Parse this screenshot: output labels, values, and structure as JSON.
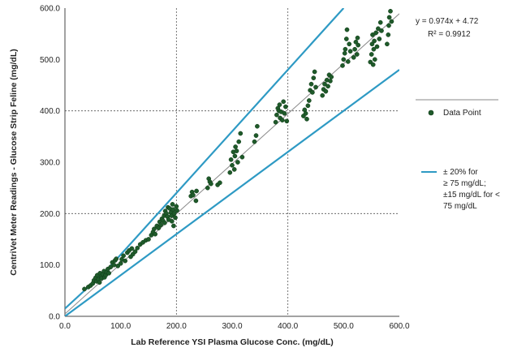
{
  "chart_data": {
    "type": "scatter",
    "title": "",
    "xlabel": "Lab Reference YSI Plasma Glucose Conc. (mg/dL)",
    "ylabel": "CentriVet Meter Readings - Glucose Strip Feline (mg/dL)",
    "xlim": [
      0,
      600
    ],
    "ylim": [
      0,
      600
    ],
    "x_ticks": [
      "0.0",
      "100.0",
      "200.0",
      "300.0",
      "400.0",
      "500.0",
      "600.0"
    ],
    "y_ticks": [
      "0.0",
      "100.0",
      "200.0",
      "300.0",
      "400.0",
      "500.0",
      "600.0"
    ],
    "grid": "dotted major gridlines at 200 and 400 on both axes",
    "legend_position": "right",
    "annotation": {
      "equation": "y = 0.974x + 4.72",
      "r_squared": "R² = 0.9912"
    },
    "colors": {
      "points": "#1f5a2a",
      "bounds": "#2e9ac4",
      "trend": "#8a8a8a",
      "grid": "#555555"
    },
    "trendline": {
      "slope": 0.974,
      "intercept": 4.72
    },
    "bounds": {
      "high_percent": 20,
      "low_mgdl": 15,
      "threshold": 75
    },
    "series": [
      {
        "name": "Data Point",
        "marker": "circle",
        "points": [
          [
            35,
            53
          ],
          [
            42,
            57
          ],
          [
            46,
            60
          ],
          [
            50,
            64
          ],
          [
            52,
            70
          ],
          [
            55,
            75
          ],
          [
            57,
            68
          ],
          [
            58,
            80
          ],
          [
            60,
            72
          ],
          [
            62,
            66
          ],
          [
            63,
            84
          ],
          [
            65,
            78
          ],
          [
            66,
            74
          ],
          [
            68,
            82
          ],
          [
            70,
            88
          ],
          [
            71,
            76
          ],
          [
            73,
            80
          ],
          [
            75,
            86
          ],
          [
            77,
            92
          ],
          [
            79,
            84
          ],
          [
            82,
            96
          ],
          [
            85,
            105
          ],
          [
            88,
            100
          ],
          [
            90,
            109
          ],
          [
            92,
            112
          ],
          [
            95,
            98
          ],
          [
            100,
            103
          ],
          [
            102,
            111
          ],
          [
            105,
            118
          ],
          [
            108,
            108
          ],
          [
            112,
            124
          ],
          [
            115,
            128
          ],
          [
            118,
            116
          ],
          [
            120,
            132
          ],
          [
            122,
            121
          ],
          [
            126,
            126
          ],
          [
            130,
            133
          ],
          [
            135,
            140
          ],
          [
            140,
            144
          ],
          [
            145,
            148
          ],
          [
            150,
            150
          ],
          [
            155,
            158
          ],
          [
            158,
            164
          ],
          [
            160,
            170
          ],
          [
            162,
            160
          ],
          [
            165,
            176
          ],
          [
            168,
            172
          ],
          [
            170,
            184
          ],
          [
            172,
            178
          ],
          [
            174,
            190
          ],
          [
            176,
            186
          ],
          [
            178,
            196
          ],
          [
            179,
            182
          ],
          [
            180,
            205
          ],
          [
            182,
            200
          ],
          [
            184,
            194
          ],
          [
            185,
            212
          ],
          [
            186,
            188
          ],
          [
            188,
            210
          ],
          [
            190,
            202
          ],
          [
            191,
            196
          ],
          [
            192,
            185
          ],
          [
            193,
            218
          ],
          [
            194,
            208
          ],
          [
            195,
            176
          ],
          [
            196,
            200
          ],
          [
            198,
            192
          ],
          [
            200,
            214
          ],
          [
            201,
            206
          ],
          [
            226,
            234
          ],
          [
            228,
            242
          ],
          [
            230,
            236
          ],
          [
            235,
            225
          ],
          [
            236,
            244
          ],
          [
            256,
            250
          ],
          [
            258,
            268
          ],
          [
            260,
            262
          ],
          [
            262,
            258
          ],
          [
            274,
            256
          ],
          [
            278,
            260
          ],
          [
            296,
            280
          ],
          [
            298,
            305
          ],
          [
            300,
            294
          ],
          [
            302,
            320
          ],
          [
            304,
            286
          ],
          [
            305,
            312
          ],
          [
            306,
            330
          ],
          [
            308,
            322
          ],
          [
            310,
            300
          ],
          [
            312,
            340
          ],
          [
            315,
            356
          ],
          [
            318,
            310
          ],
          [
            340,
            340
          ],
          [
            343,
            352
          ],
          [
            345,
            370
          ],
          [
            378,
            378
          ],
          [
            380,
            392
          ],
          [
            382,
            405
          ],
          [
            384,
            400
          ],
          [
            385,
            412
          ],
          [
            386,
            386
          ],
          [
            388,
            398
          ],
          [
            390,
            382
          ],
          [
            392,
            418
          ],
          [
            394,
            395
          ],
          [
            396,
            408
          ],
          [
            398,
            380
          ],
          [
            428,
            390
          ],
          [
            430,
            402
          ],
          [
            432,
            395
          ],
          [
            434,
            384
          ],
          [
            436,
            410
          ],
          [
            438,
            420
          ],
          [
            440,
            440
          ],
          [
            442,
            452
          ],
          [
            444,
            436
          ],
          [
            446,
            464
          ],
          [
            448,
            476
          ],
          [
            450,
            446
          ],
          [
            462,
            430
          ],
          [
            464,
            442
          ],
          [
            466,
            452
          ],
          [
            468,
            438
          ],
          [
            470,
            460
          ],
          [
            472,
            448
          ],
          [
            474,
            470
          ],
          [
            476,
            458
          ],
          [
            478,
            466
          ],
          [
            498,
            488
          ],
          [
            500,
            500
          ],
          [
            502,
            512
          ],
          [
            503,
            520
          ],
          [
            505,
            540
          ],
          [
            506,
            558
          ],
          [
            508,
            496
          ],
          [
            510,
            530
          ],
          [
            512,
            516
          ],
          [
            518,
            504
          ],
          [
            520,
            520
          ],
          [
            522,
            534
          ],
          [
            524,
            510
          ],
          [
            525,
            542
          ],
          [
            526,
            528
          ],
          [
            548,
            495
          ],
          [
            550,
            510
          ],
          [
            551,
            530
          ],
          [
            552,
            548
          ],
          [
            553,
            490
          ],
          [
            554,
            520
          ],
          [
            555,
            536
          ],
          [
            556,
            500
          ],
          [
            558,
            552
          ],
          [
            560,
            525
          ],
          [
            562,
            560
          ],
          [
            564,
            540
          ],
          [
            566,
            572
          ],
          [
            568,
            556
          ],
          [
            578,
            530
          ],
          [
            580,
            548
          ],
          [
            581,
            566
          ],
          [
            582,
            582
          ],
          [
            584,
            594
          ],
          [
            586,
            574
          ]
        ]
      },
      {
        "name": "± 20% for ≥ 75 mg/dL; ±15 mg/dL for < 75 mg/dL",
        "legend_lines": [
          "± 20% for",
          "≥ 75 mg/dL;",
          "±15 mg/dL for <",
          "75 mg/dL"
        ]
      }
    ]
  }
}
